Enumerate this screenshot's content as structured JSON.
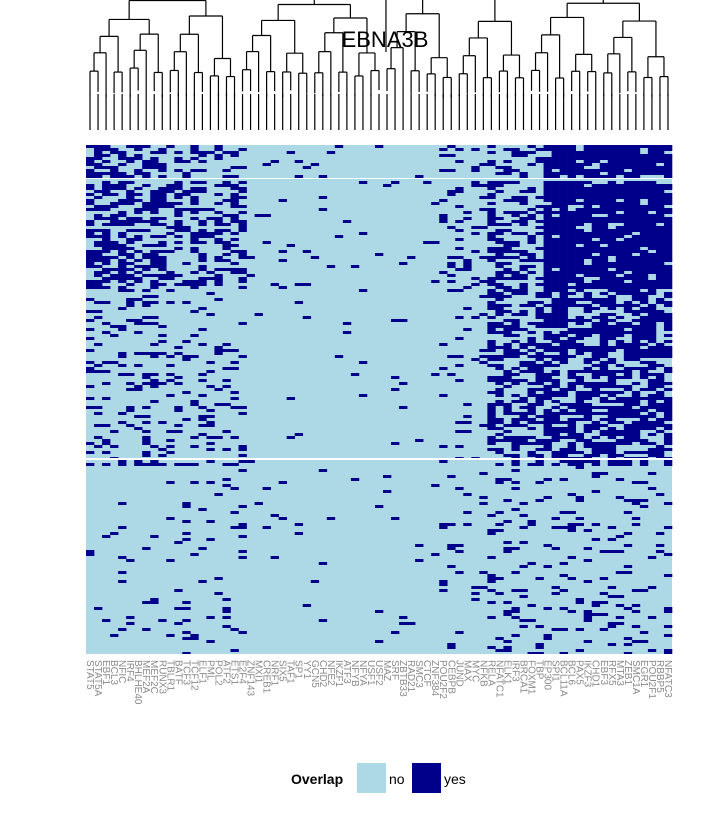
{
  "chart_data": {
    "type": "heatmap",
    "title": "EBNA3B",
    "columns": [
      "STAT5",
      "STAT5A",
      "EBF1",
      "BCL3",
      "NFIC",
      "IRF4",
      "BHLHE40",
      "MEF2A",
      "MEF2C",
      "RUNX3",
      "TBLR1",
      "BATF",
      "TCF3",
      "TCF12",
      "ELF1",
      "PML",
      "POL2",
      "ATF2",
      "ETS1",
      "E2F4",
      "ZNF143",
      "MXI1",
      "CREB1",
      "NRF1",
      "SIX5",
      "TAF1",
      "SP1",
      "YY1",
      "GCN5",
      "CHD2",
      "NFE2",
      "IKZF1",
      "ATF3",
      "NFYB",
      "NFYA",
      "USF1",
      "USF2",
      "MAZ",
      "SRF",
      "ZBTB33",
      "RAD21",
      "SMC3",
      "CTCF",
      "ZNF384",
      "POU2F2",
      "CEBPB",
      "JUND",
      "MAX",
      "MYC",
      "NFKB",
      "RELA",
      "NFATC1",
      "ELK1",
      "IRF3",
      "BRCA1",
      "FOXM1",
      "TBP",
      "EP300",
      "SPI1",
      "BCL11A",
      "BCL6",
      "PAX5",
      "IKZF3",
      "CHD1",
      "EBF3",
      "RFX5",
      "MTA3",
      "ZEB1",
      "SMC1A",
      "EGR1",
      "POU2F1",
      "RBBP5",
      "NFATC3"
    ],
    "legend": {
      "title": "Overlap",
      "entries": [
        {
          "label": "no",
          "color": "#add8e6"
        },
        {
          "label": "yes",
          "color": "#00008b"
        }
      ]
    },
    "colors": {
      "no": "#add8e6",
      "yes": "#00008b"
    },
    "col_dendrogram": true,
    "row_splits": 3
  }
}
